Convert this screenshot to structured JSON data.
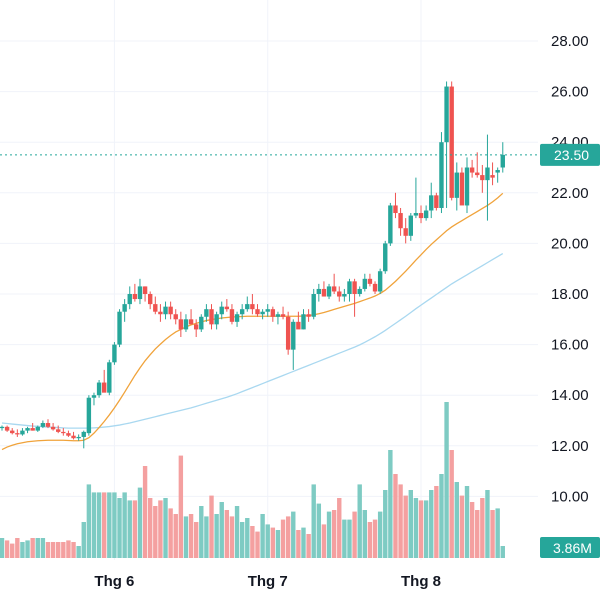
{
  "chart_data": {
    "type": "candlestick",
    "y_axis": {
      "ticks": [
        "10.00",
        "12.00",
        "14.00",
        "16.00",
        "18.00",
        "20.00",
        "22.00",
        "24.00",
        "26.00",
        "28.00"
      ],
      "ylim": [
        7.8,
        29.2
      ]
    },
    "x_axis": {
      "labels": [
        "Thg 6",
        "Thg 7",
        "Thg 8"
      ],
      "label_bar_index": [
        22,
        52,
        82
      ]
    },
    "last_price": {
      "value": 23.5,
      "label": "23.50"
    },
    "volume_label": "3.86M",
    "colors": {
      "up": "#26a69a",
      "down": "#ef5350",
      "up_volume": "#7ecbc3",
      "down_volume": "#f4a0a0",
      "ma_short": "#f0a33b",
      "ma_long": "#a9d8f0",
      "last_price_line": "#26a69a"
    },
    "candles": [
      [
        12.7,
        12.8,
        12.6,
        12.75,
        0.25
      ],
      [
        12.75,
        12.8,
        12.55,
        12.6,
        0.22
      ],
      [
        12.6,
        12.7,
        12.45,
        12.5,
        0.18
      ],
      [
        12.5,
        12.65,
        12.35,
        12.45,
        0.25
      ],
      [
        12.45,
        12.7,
        12.4,
        12.6,
        0.2
      ],
      [
        12.6,
        12.75,
        12.5,
        12.7,
        0.22
      ],
      [
        12.7,
        12.9,
        12.6,
        12.6,
        0.25
      ],
      [
        12.6,
        12.8,
        12.55,
        12.75,
        0.25
      ],
      [
        12.75,
        13.0,
        12.7,
        12.9,
        0.25
      ],
      [
        12.9,
        13.05,
        12.7,
        12.75,
        0.2
      ],
      [
        12.75,
        12.9,
        12.6,
        12.65,
        0.2
      ],
      [
        12.65,
        12.8,
        12.5,
        12.55,
        0.2
      ],
      [
        12.55,
        12.7,
        12.4,
        12.5,
        0.2
      ],
      [
        12.5,
        12.6,
        12.35,
        12.4,
        0.22
      ],
      [
        12.4,
        12.55,
        12.25,
        12.3,
        0.2
      ],
      [
        12.3,
        12.45,
        12.2,
        12.35,
        0.15
      ],
      [
        12.35,
        12.6,
        11.9,
        12.55,
        0.45
      ],
      [
        12.5,
        14.0,
        12.4,
        13.9,
        0.92
      ],
      [
        13.9,
        14.1,
        13.6,
        14.0,
        0.82
      ],
      [
        14.0,
        14.6,
        13.9,
        14.5,
        0.82
      ],
      [
        14.5,
        15.0,
        14.2,
        14.1,
        0.82
      ],
      [
        14.1,
        15.4,
        14.0,
        15.3,
        0.82
      ],
      [
        15.3,
        16.1,
        15.2,
        16.0,
        0.82
      ],
      [
        16.0,
        17.4,
        15.9,
        17.3,
        0.75
      ],
      [
        17.3,
        17.8,
        16.9,
        17.6,
        0.82
      ],
      [
        17.6,
        18.3,
        17.4,
        18.0,
        0.72
      ],
      [
        18.0,
        18.4,
        17.7,
        17.8,
        0.72
      ],
      [
        17.8,
        18.6,
        17.6,
        18.3,
        0.88
      ],
      [
        18.3,
        18.3,
        17.7,
        18.0,
        1.15
      ],
      [
        18.0,
        18.1,
        17.4,
        17.6,
        0.75
      ],
      [
        17.6,
        17.9,
        17.2,
        17.3,
        0.65
      ],
      [
        17.3,
        17.6,
        16.9,
        17.2,
        0.72
      ],
      [
        17.2,
        17.7,
        17.0,
        17.5,
        0.75
      ],
      [
        17.5,
        17.7,
        17.0,
        17.2,
        0.62
      ],
      [
        17.2,
        17.4,
        16.8,
        17.0,
        0.55
      ],
      [
        17.0,
        17.3,
        16.3,
        16.6,
        1.28
      ],
      [
        16.6,
        17.2,
        16.5,
        17.0,
        0.52
      ],
      [
        17.0,
        17.4,
        16.8,
        16.8,
        0.55
      ],
      [
        16.8,
        17.0,
        16.3,
        16.6,
        0.45
      ],
      [
        16.6,
        17.2,
        16.5,
        17.1,
        0.65
      ],
      [
        17.1,
        17.6,
        16.9,
        17.4,
        0.52
      ],
      [
        17.4,
        17.6,
        16.6,
        16.8,
        0.78
      ],
      [
        16.8,
        17.3,
        16.6,
        17.2,
        0.55
      ],
      [
        17.2,
        17.7,
        17.0,
        17.5,
        0.7
      ],
      [
        17.5,
        17.8,
        17.3,
        17.4,
        0.6
      ],
      [
        17.4,
        17.6,
        16.8,
        16.9,
        0.52
      ],
      [
        16.9,
        17.3,
        16.7,
        17.2,
        0.65
      ],
      [
        17.2,
        17.6,
        17.0,
        17.4,
        0.45
      ],
      [
        17.4,
        17.9,
        17.3,
        17.6,
        0.5
      ],
      [
        17.6,
        18.0,
        17.2,
        17.4,
        0.4
      ],
      [
        17.4,
        17.6,
        17.1,
        17.2,
        0.33
      ],
      [
        17.2,
        17.4,
        17.0,
        17.3,
        0.55
      ],
      [
        17.3,
        17.6,
        17.1,
        17.4,
        0.42
      ],
      [
        17.4,
        17.5,
        16.9,
        17.1,
        0.38
      ],
      [
        17.1,
        17.3,
        16.8,
        17.2,
        0.35
      ],
      [
        17.2,
        17.5,
        17.0,
        17.1,
        0.48
      ],
      [
        17.1,
        17.3,
        15.6,
        15.8,
        0.52
      ],
      [
        15.8,
        17.0,
        15.0,
        16.9,
        0.58
      ],
      [
        16.9,
        17.3,
        16.7,
        16.6,
        0.35
      ],
      [
        16.6,
        17.4,
        16.6,
        17.2,
        0.38
      ],
      [
        17.2,
        17.4,
        16.9,
        17.1,
        0.3
      ],
      [
        17.1,
        18.2,
        17.0,
        18.0,
        0.92
      ],
      [
        18.0,
        18.4,
        17.7,
        18.2,
        0.68
      ],
      [
        18.2,
        18.5,
        17.9,
        17.9,
        0.42
      ],
      [
        17.9,
        18.4,
        17.8,
        18.3,
        0.58
      ],
      [
        18.3,
        18.8,
        18.0,
        18.1,
        0.6
      ],
      [
        18.1,
        18.3,
        17.7,
        17.9,
        0.75
      ],
      [
        17.9,
        18.2,
        17.7,
        18.0,
        0.48
      ],
      [
        18.0,
        18.6,
        17.7,
        18.5,
        0.48
      ],
      [
        18.5,
        18.6,
        17.1,
        18.0,
        0.58
      ],
      [
        18.0,
        18.3,
        17.9,
        18.2,
        0.92
      ],
      [
        18.2,
        18.8,
        18.1,
        18.6,
        0.6
      ],
      [
        18.6,
        18.8,
        18.3,
        18.4,
        0.45
      ],
      [
        18.4,
        18.5,
        18.0,
        18.1,
        0.48
      ],
      [
        18.1,
        19.0,
        18.0,
        18.9,
        0.58
      ],
      [
        18.9,
        20.1,
        18.8,
        20.0,
        0.85
      ],
      [
        20.0,
        21.6,
        19.9,
        21.5,
        1.35
      ],
      [
        21.5,
        22.0,
        21.0,
        21.2,
        1.05
      ],
      [
        21.2,
        21.4,
        20.3,
        20.6,
        0.92
      ],
      [
        20.6,
        21.0,
        20.0,
        20.3,
        0.78
      ],
      [
        20.3,
        21.2,
        20.1,
        21.1,
        0.85
      ],
      [
        21.1,
        22.6,
        21.0,
        21.2,
        0.75
      ],
      [
        21.2,
        21.5,
        20.8,
        21.0,
        0.72
      ],
      [
        21.0,
        21.5,
        20.9,
        21.3,
        0.72
      ],
      [
        21.3,
        22.4,
        21.0,
        21.9,
        0.85
      ],
      [
        21.9,
        22.0,
        21.3,
        21.4,
        0.9
      ],
      [
        21.4,
        24.4,
        21.2,
        24.0,
        1.05
      ],
      [
        24.0,
        26.4,
        21.4,
        26.2,
        1.95
      ],
      [
        26.2,
        26.4,
        21.7,
        21.8,
        1.35
      ],
      [
        21.8,
        23.2,
        21.3,
        22.8,
        0.95
      ],
      [
        22.8,
        23.0,
        21.6,
        21.5,
        0.78
      ],
      [
        21.5,
        23.4,
        21.2,
        23.0,
        0.9
      ],
      [
        23.0,
        23.3,
        22.6,
        22.8,
        0.7
      ],
      [
        22.8,
        23.6,
        22.6,
        22.7,
        0.6
      ],
      [
        22.7,
        23.1,
        22.0,
        22.5,
        0.75
      ],
      [
        22.5,
        24.3,
        20.9,
        23.0,
        0.85
      ],
      [
        22.7,
        23.2,
        22.3,
        22.6,
        0.6
      ],
      [
        22.8,
        23.0,
        22.4,
        22.9,
        0.62
      ],
      [
        23.0,
        24.0,
        22.8,
        23.5,
        0.15
      ]
    ],
    "ma_short_values": [
      11.85,
      11.95,
      12.02,
      12.08,
      12.12,
      12.16,
      12.18,
      12.2,
      12.21,
      12.22,
      12.22,
      12.22,
      12.22,
      12.21,
      12.2,
      12.2,
      12.22,
      12.32,
      12.5,
      12.72,
      12.96,
      13.22,
      13.5,
      13.8,
      14.12,
      14.45,
      14.78,
      15.08,
      15.36,
      15.6,
      15.83,
      16.02,
      16.2,
      16.36,
      16.5,
      16.6,
      16.7,
      16.78,
      16.84,
      16.9,
      16.95,
      16.99,
      17.02,
      17.05,
      17.07,
      17.09,
      17.1,
      17.11,
      17.12,
      17.12,
      17.12,
      17.12,
      17.12,
      17.12,
      17.12,
      17.12,
      17.12,
      17.12,
      17.12,
      17.13,
      17.15,
      17.18,
      17.22,
      17.27,
      17.33,
      17.39,
      17.45,
      17.51,
      17.57,
      17.63,
      17.7,
      17.77,
      17.84,
      17.92,
      18.02,
      18.15,
      18.32,
      18.5,
      18.7,
      18.9,
      19.12,
      19.34,
      19.55,
      19.76,
      19.96,
      20.14,
      20.32,
      20.5,
      20.65,
      20.78,
      20.9,
      21.02,
      21.14,
      21.26,
      21.38,
      21.5,
      21.64,
      21.8,
      21.98
    ],
    "ma_long_values": [
      12.9,
      12.88,
      12.86,
      12.84,
      12.82,
      12.8,
      12.78,
      12.77,
      12.75,
      12.74,
      12.73,
      12.72,
      12.71,
      12.7,
      12.7,
      12.7,
      12.7,
      12.7,
      12.71,
      12.72,
      12.74,
      12.76,
      12.79,
      12.82,
      12.86,
      12.9,
      12.95,
      13.0,
      13.05,
      13.1,
      13.15,
      13.2,
      13.25,
      13.3,
      13.35,
      13.4,
      13.45,
      13.5,
      13.56,
      13.62,
      13.68,
      13.74,
      13.8,
      13.86,
      13.92,
      13.99,
      14.06,
      14.14,
      14.22,
      14.3,
      14.38,
      14.46,
      14.54,
      14.62,
      14.7,
      14.78,
      14.86,
      14.94,
      15.02,
      15.1,
      15.18,
      15.26,
      15.34,
      15.42,
      15.5,
      15.58,
      15.66,
      15.74,
      15.82,
      15.9,
      15.99,
      16.09,
      16.2,
      16.31,
      16.43,
      16.56,
      16.7,
      16.84,
      16.98,
      17.12,
      17.27,
      17.42,
      17.56,
      17.7,
      17.84,
      17.98,
      18.12,
      18.26,
      18.4,
      18.52,
      18.64,
      18.76,
      18.88,
      19.0,
      19.12,
      19.24,
      19.36,
      19.48,
      19.6
    ]
  }
}
